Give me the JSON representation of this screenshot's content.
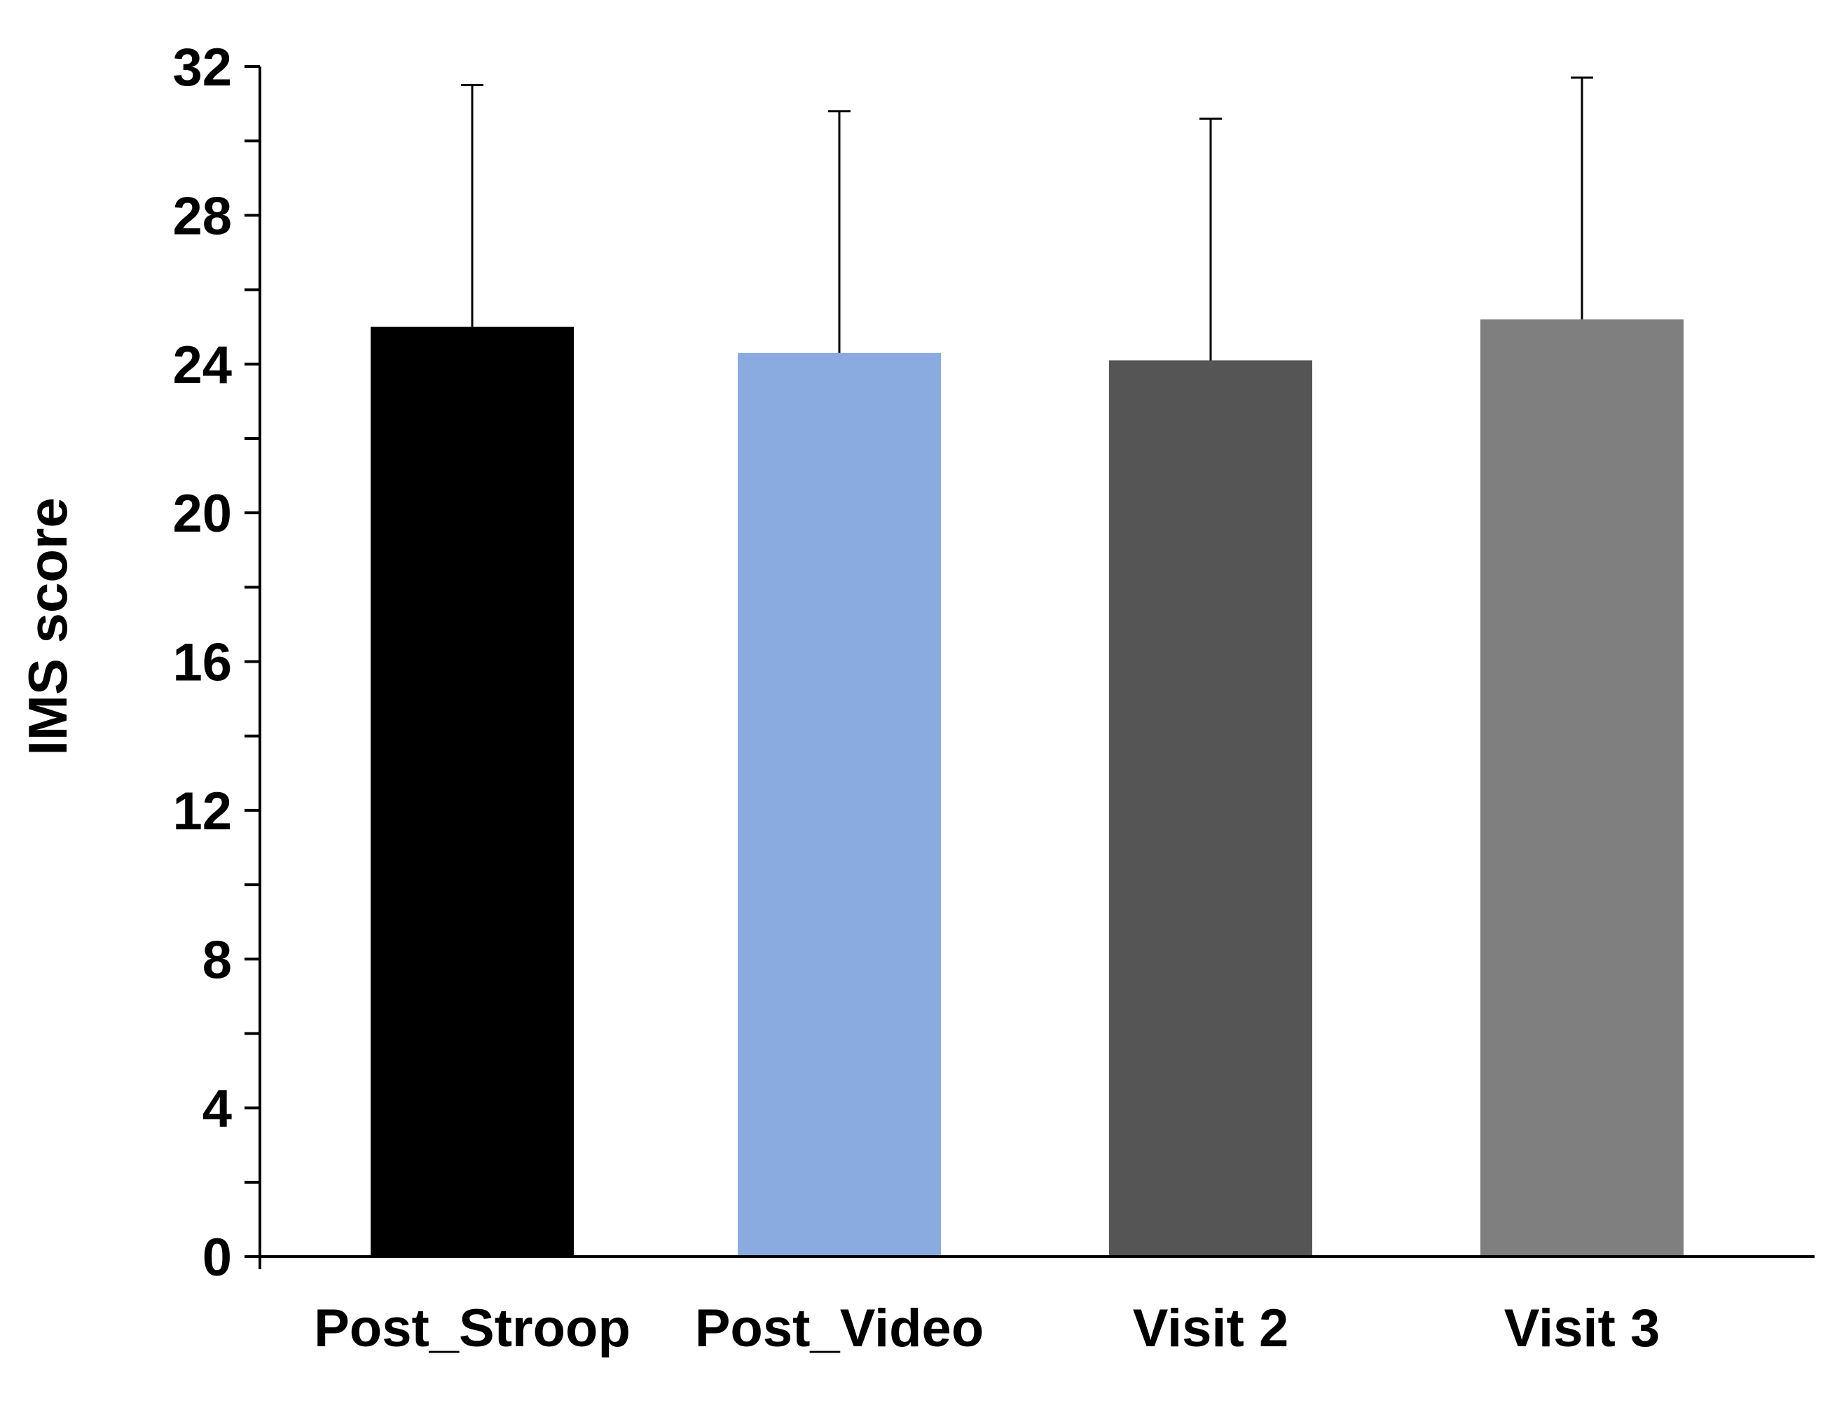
{
  "chart_data": {
    "type": "bar",
    "title": "",
    "xlabel": "",
    "ylabel": "IMS score",
    "ylim": [
      0,
      32
    ],
    "yticks": [
      "0",
      "4",
      "8",
      "12",
      "16",
      "20",
      "24",
      "28",
      "32"
    ],
    "ytick_values": [
      0,
      4,
      8,
      12,
      16,
      20,
      24,
      28,
      32
    ],
    "minor_tick_step": 2,
    "grid": false,
    "legend": "none",
    "categories": [
      "Post_Stroop",
      "Post_Video",
      "Visit 2",
      "Visit 3"
    ],
    "values": [
      25.0,
      24.3,
      24.1,
      25.2
    ],
    "error_upper": [
      31.5,
      30.8,
      30.6,
      31.7
    ],
    "colors": [
      "#000000",
      "#8aabdf",
      "#555555",
      "#7f7f7f"
    ]
  }
}
